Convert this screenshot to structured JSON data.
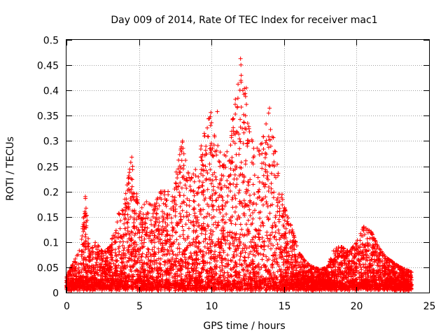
{
  "chart_data": {
    "type": "scatter",
    "title": "Day 009 of 2014, Rate Of TEC Index for receiver mac1",
    "xlabel": "GPS time / hours",
    "ylabel": "ROTI / TECUs",
    "xlim": [
      0,
      25
    ],
    "ylim": [
      0,
      0.5
    ],
    "grid": true,
    "marker": "+",
    "color": "#ff0000",
    "x_ticks": [
      {
        "value": 0,
        "label": "0"
      },
      {
        "value": 5,
        "label": "5"
      },
      {
        "value": 10,
        "label": "10"
      },
      {
        "value": 15,
        "label": "15"
      },
      {
        "value": 20,
        "label": "20"
      },
      {
        "value": 25,
        "label": "25"
      }
    ],
    "y_ticks": [
      {
        "value": 0,
        "label": "0"
      },
      {
        "value": 0.05,
        "label": "0.05"
      },
      {
        "value": 0.1,
        "label": "0.1"
      },
      {
        "value": 0.15,
        "label": "0.15"
      },
      {
        "value": 0.2,
        "label": "0.2"
      },
      {
        "value": 0.25,
        "label": "0.25"
      },
      {
        "value": 0.3,
        "label": "0.3"
      },
      {
        "value": 0.35,
        "label": "0.35"
      },
      {
        "value": 0.4,
        "label": "0.4"
      },
      {
        "value": 0.45,
        "label": "0.45"
      },
      {
        "value": 0.5,
        "label": "0.5"
      }
    ],
    "x_data_range": [
      0,
      23.8
    ],
    "activity_envelope": [
      [
        0.0,
        0.03
      ],
      [
        0.5,
        0.06
      ],
      [
        1.0,
        0.09
      ],
      [
        1.3,
        0.19
      ],
      [
        1.6,
        0.08
      ],
      [
        2.0,
        0.1
      ],
      [
        2.5,
        0.08
      ],
      [
        3.0,
        0.09
      ],
      [
        3.5,
        0.15
      ],
      [
        4.0,
        0.18
      ],
      [
        4.5,
        0.27
      ],
      [
        5.0,
        0.16
      ],
      [
        5.5,
        0.18
      ],
      [
        6.0,
        0.17
      ],
      [
        6.5,
        0.2
      ],
      [
        7.0,
        0.2
      ],
      [
        7.5,
        0.23
      ],
      [
        8.0,
        0.3
      ],
      [
        8.5,
        0.22
      ],
      [
        9.0,
        0.25
      ],
      [
        9.5,
        0.32
      ],
      [
        10.0,
        0.36
      ],
      [
        10.5,
        0.28
      ],
      [
        11.0,
        0.27
      ],
      [
        11.5,
        0.35
      ],
      [
        12.0,
        0.46
      ],
      [
        12.3,
        0.4
      ],
      [
        12.6,
        0.32
      ],
      [
        13.0,
        0.28
      ],
      [
        13.5,
        0.3
      ],
      [
        14.0,
        0.365
      ],
      [
        14.5,
        0.26
      ],
      [
        15.0,
        0.17
      ],
      [
        15.5,
        0.13
      ],
      [
        16.0,
        0.08
      ],
      [
        16.5,
        0.06
      ],
      [
        17.0,
        0.05
      ],
      [
        17.5,
        0.045
      ],
      [
        18.0,
        0.05
      ],
      [
        18.5,
        0.09
      ],
      [
        19.0,
        0.09
      ],
      [
        19.5,
        0.08
      ],
      [
        20.0,
        0.1
      ],
      [
        20.5,
        0.13
      ],
      [
        21.0,
        0.12
      ],
      [
        21.5,
        0.09
      ],
      [
        22.0,
        0.07
      ],
      [
        22.5,
        0.06
      ],
      [
        23.0,
        0.05
      ],
      [
        23.8,
        0.04
      ]
    ],
    "peak_points": [
      {
        "x": 1.3,
        "y": 0.19
      },
      {
        "x": 4.5,
        "y": 0.268
      },
      {
        "x": 8.0,
        "y": 0.3
      },
      {
        "x": 9.5,
        "y": 0.315
      },
      {
        "x": 10.4,
        "y": 0.358
      },
      {
        "x": 12.0,
        "y": 0.463
      },
      {
        "x": 12.4,
        "y": 0.405
      },
      {
        "x": 14.0,
        "y": 0.365
      },
      {
        "x": 20.5,
        "y": 0.13
      }
    ]
  }
}
